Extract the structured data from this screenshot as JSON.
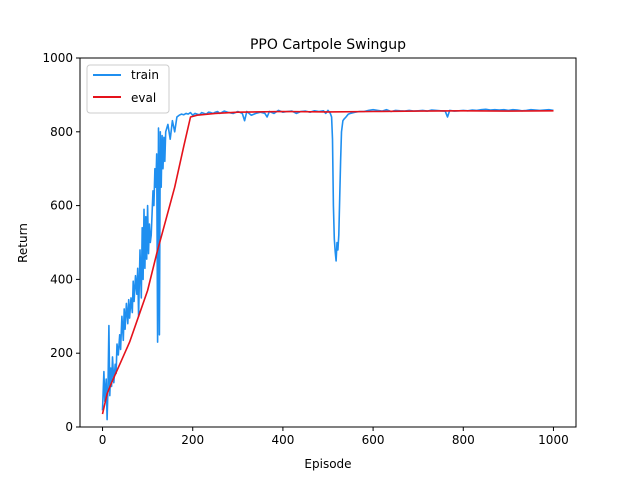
{
  "chart_data": {
    "type": "line",
    "title": "PPO Cartpole Swingup",
    "xlabel": "Episode",
    "ylabel": "Return",
    "xlim": [
      -50,
      1050
    ],
    "ylim": [
      0,
      1000
    ],
    "xticks": [
      0,
      200,
      400,
      600,
      800,
      1000
    ],
    "yticks": [
      0,
      200,
      400,
      600,
      800,
      1000
    ],
    "grid": false,
    "legend_position": "top-left",
    "series": [
      {
        "name": "train",
        "color": "#1f8ff0",
        "x": [
          0,
          3,
          5,
          8,
          10,
          12,
          14,
          16,
          18,
          20,
          22,
          25,
          28,
          30,
          32,
          35,
          38,
          40,
          43,
          46,
          48,
          50,
          53,
          56,
          58,
          60,
          63,
          66,
          68,
          70,
          73,
          76,
          78,
          80,
          83,
          86,
          88,
          90,
          92,
          94,
          96,
          98,
          100,
          102,
          104,
          106,
          108,
          110,
          112,
          114,
          116,
          118,
          120,
          122,
          124,
          126,
          128,
          130,
          132,
          134,
          136,
          138,
          140,
          145,
          150,
          155,
          160,
          165,
          170,
          175,
          180,
          185,
          190,
          195,
          200,
          205,
          210,
          215,
          220,
          225,
          230,
          235,
          240,
          245,
          250,
          255,
          260,
          270,
          280,
          290,
          300,
          310,
          315,
          320,
          330,
          340,
          350,
          360,
          365,
          370,
          380,
          390,
          400,
          410,
          420,
          430,
          440,
          450,
          460,
          470,
          480,
          490,
          495,
          500,
          505,
          508,
          510,
          512,
          514,
          516,
          518,
          520,
          522,
          524,
          526,
          528,
          530,
          533,
          536,
          540,
          545,
          550,
          560,
          570,
          580,
          590,
          600,
          610,
          620,
          630,
          640,
          650,
          660,
          670,
          680,
          690,
          700,
          710,
          720,
          730,
          740,
          750,
          760,
          765,
          770,
          780,
          790,
          800,
          810,
          820,
          830,
          840,
          850,
          860,
          870,
          880,
          890,
          900,
          910,
          920,
          930,
          940,
          950,
          960,
          970,
          980,
          990,
          1000
        ],
        "values": [
          45,
          150,
          70,
          130,
          20,
          110,
          275,
          85,
          160,
          110,
          190,
          120,
          170,
          145,
          225,
          195,
          250,
          210,
          300,
          235,
          320,
          265,
          335,
          280,
          345,
          295,
          350,
          310,
          395,
          340,
          410,
          360,
          430,
          300,
          480,
          350,
          540,
          400,
          590,
          430,
          570,
          455,
          600,
          470,
          550,
          500,
          520,
          580,
          640,
          600,
          700,
          650,
          740,
          230,
          810,
          250,
          800,
          650,
          790,
          700,
          785,
          720,
          800,
          820,
          780,
          830,
          800,
          840,
          845,
          848,
          846,
          850,
          848,
          852,
          845,
          850,
          848,
          846,
          852,
          850,
          848,
          853,
          852,
          850,
          853,
          855,
          850,
          856,
          852,
          850,
          855,
          850,
          830,
          855,
          845,
          850,
          853,
          850,
          840,
          855,
          850,
          858,
          853,
          855,
          856,
          850,
          855,
          856,
          853,
          857,
          855,
          857,
          850,
          858,
          850,
          840,
          780,
          600,
          510,
          475,
          450,
          500,
          480,
          520,
          620,
          720,
          800,
          830,
          835,
          840,
          848,
          850,
          853,
          855,
          855,
          858,
          860,
          858,
          856,
          860,
          855,
          858,
          857,
          856,
          858,
          856,
          857,
          858,
          856,
          859,
          858,
          857,
          856,
          840,
          858,
          856,
          857,
          858,
          857,
          859,
          858,
          860,
          861,
          859,
          860,
          859,
          860,
          858,
          860,
          859,
          857,
          858,
          860,
          859,
          858,
          859,
          860,
          858
        ]
      },
      {
        "name": "eval",
        "color": "#e5121b",
        "x": [
          0,
          10,
          20,
          40,
          60,
          80,
          100,
          120,
          140,
          160,
          180,
          195,
          210,
          250,
          300,
          400,
          500,
          600,
          700,
          800,
          900,
          1000
        ],
        "values": [
          35,
          90,
          120,
          175,
          230,
          300,
          370,
          470,
          560,
          650,
          760,
          840,
          845,
          850,
          853,
          855,
          854,
          855,
          856,
          857,
          856,
          857
        ]
      }
    ]
  }
}
